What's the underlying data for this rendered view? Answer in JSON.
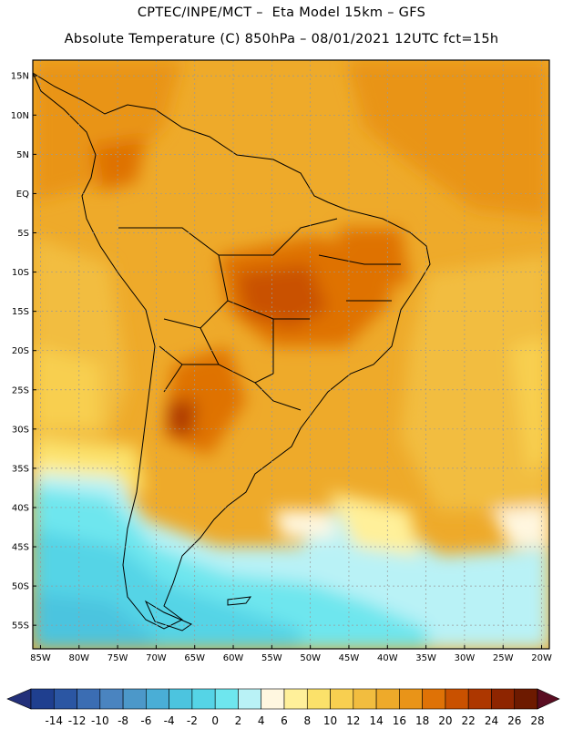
{
  "header": {
    "line1": "CPTEC/INPE/MCT –  Eta Model 15km – GFS",
    "line2": "Absolute Temperature (C) 850hPa – 08/01/2021 12UTC fct=15h"
  },
  "map": {
    "lat_labels": [
      "15N",
      "10N",
      "5N",
      "EQ",
      "5S",
      "10S",
      "15S",
      "20S",
      "25S",
      "30S",
      "35S",
      "40S",
      "45S",
      "50S",
      "55S"
    ],
    "lat_values": [
      15,
      10,
      5,
      0,
      -5,
      -10,
      -15,
      -20,
      -25,
      -30,
      -35,
      -40,
      -45,
      -50,
      -55
    ],
    "lon_labels": [
      "85W",
      "80W",
      "75W",
      "70W",
      "65W",
      "60W",
      "55W",
      "50W",
      "45W",
      "40W",
      "35W",
      "30W",
      "25W",
      "20W"
    ],
    "lon_values": [
      -85,
      -80,
      -75,
      -70,
      -65,
      -60,
      -55,
      -50,
      -45,
      -40,
      -35,
      -30,
      -25,
      -20
    ],
    "lat_range": [
      -58,
      17
    ],
    "lon_range": [
      -86,
      -19
    ],
    "grid": true
  },
  "colorbar": {
    "labels": [
      "-14",
      "-12",
      "-10",
      "-8",
      "-6",
      "-4",
      "-2",
      "0",
      "2",
      "4",
      "6",
      "8",
      "10",
      "12",
      "14",
      "16",
      "18",
      "20",
      "22",
      "24",
      "26",
      "28"
    ],
    "colors": [
      "#1f3f8f",
      "#2b56a3",
      "#3b6db3",
      "#4a84c0",
      "#4c98c9",
      "#4aaed6",
      "#4cc4df",
      "#55d4e6",
      "#6ee6ee",
      "#b9f2f6",
      "#fff7e0",
      "#fff09a",
      "#fbe16a",
      "#f8cf50",
      "#f2bd3f",
      "#eeaa2a",
      "#e99418",
      "#df7206",
      "#c95100",
      "#ad3700",
      "#8e2500",
      "#6d1a00"
    ],
    "under_color": "#23307a",
    "over_color": "#5a0d22"
  }
}
